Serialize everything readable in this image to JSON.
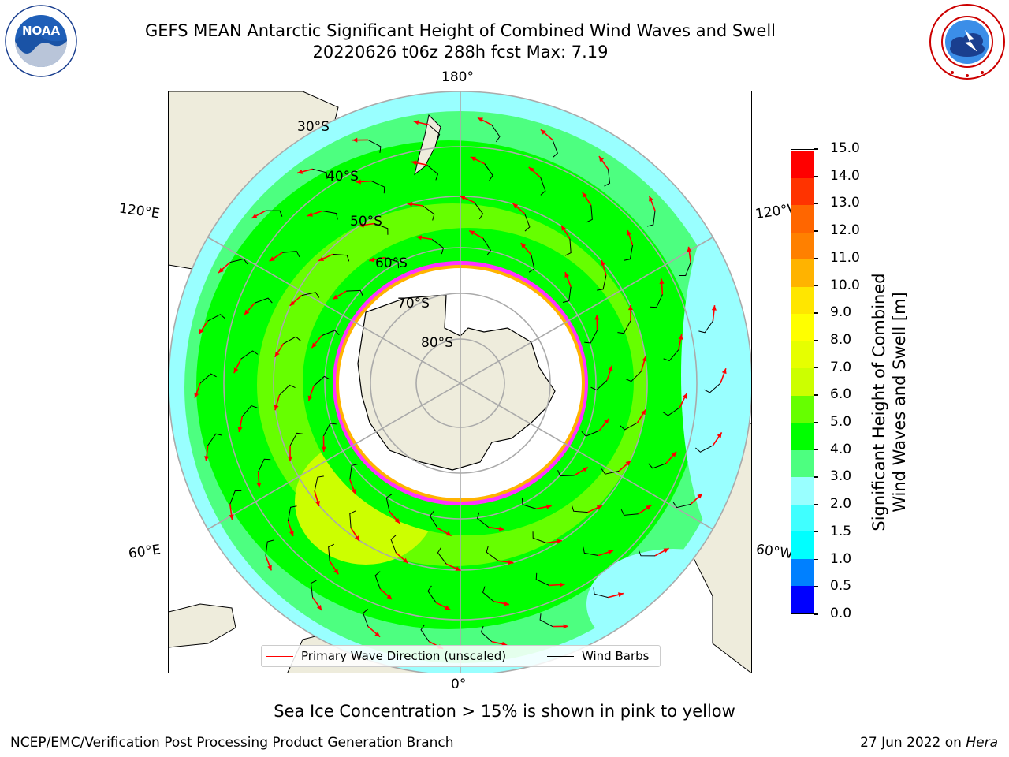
{
  "title": {
    "line1": "GEFS MEAN Antarctic Significant Height of Combined Wind Waves and Swell",
    "line2": "20220626 t06z 288h fcst   Max: 7.19"
  },
  "logos": {
    "left": {
      "icon": "noaa-logo",
      "text": "NOAA",
      "ring_text": "NATIONAL OCEANIC AND ATMOSPHERIC ADMINISTRATION · U.S. DEPARTMENT OF COMMERCE"
    },
    "right": {
      "icon": "nws-logo",
      "ring_text": "NATIONAL WEATHER SERVICE"
    }
  },
  "map": {
    "projection": "south-polar-stereographic",
    "meridian_labels": {
      "top": "180°",
      "bottom": "0°",
      "upper_left": "120°E",
      "upper_right": "120°W",
      "lower_left": "60°E",
      "lower_right": "60°W"
    },
    "parallel_labels": [
      "30°S",
      "40°S",
      "50°S",
      "60°S",
      "70°S",
      "80°S"
    ],
    "colors": {
      "land": "#eeecdc",
      "ice_free_open": "#ffffff",
      "ice_edge": "#ff33ff"
    }
  },
  "legend": {
    "items": [
      {
        "label": "Primary Wave Direction (unscaled)",
        "color": "#ff0000"
      },
      {
        "label": "Wind Barbs",
        "color": "#000000"
      }
    ]
  },
  "colorbar": {
    "title": "Significant Height of Combined Wind Waves and Swell [m]",
    "title_line1": "Significant Height of Combined",
    "title_line2": "Wind Waves and Swell [m]",
    "ticks": [
      "0.0",
      "0.5",
      "1.0",
      "1.5",
      "2.0",
      "3.0",
      "4.0",
      "5.0",
      "6.0",
      "7.0",
      "8.0",
      "9.0",
      "10.0",
      "11.0",
      "12.0",
      "13.0",
      "14.0",
      "15.0"
    ],
    "colors": [
      "#0000ff",
      "#0080ff",
      "#00ffff",
      "#40ffff",
      "#99ffff",
      "#4dff80",
      "#00ff00",
      "#66ff00",
      "#ccff00",
      "#e6ff00",
      "#ffff00",
      "#ffe600",
      "#ffb300",
      "#ff8000",
      "#ff6600",
      "#ff3300",
      "#ff0000"
    ]
  },
  "caption": "Sea Ice Concentration > 15% is shown in pink to yellow",
  "footer": {
    "left": "NCEP/EMC/Verification Post Processing Product Generation Branch",
    "right_prefix": "27 Jun 2022 on ",
    "right_italic": "Hera"
  }
}
